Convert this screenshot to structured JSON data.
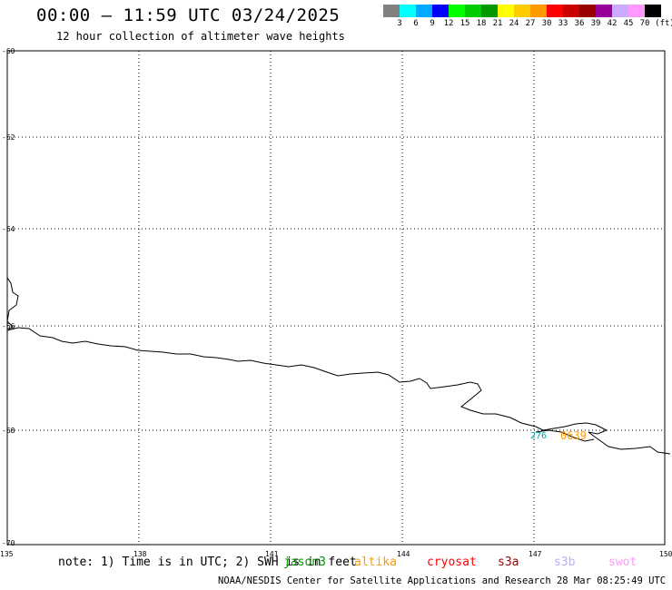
{
  "header": {
    "title": "00:00 – 11:59 UTC 03/24/2025",
    "subtitle": "12 hour collection of altimeter wave heights"
  },
  "color_scale": {
    "colors": [
      "#808080",
      "#00ffff",
      "#00aaff",
      "#0000ff",
      "#00ff00",
      "#00cc00",
      "#009900",
      "#ffff00",
      "#ffcc00",
      "#ff9900",
      "#ff0000",
      "#cc0000",
      "#990000",
      "#990099",
      "#ccaaff",
      "#ff99ff",
      "#000000"
    ],
    "labels": [
      "3",
      "6",
      "9",
      "12",
      "15",
      "18",
      "21",
      "24",
      "27",
      "30",
      "33",
      "36",
      "39",
      "42",
      "45",
      "70",
      "(ft)"
    ]
  },
  "map": {
    "lat_labels": [
      "-60",
      "-62",
      "-64",
      "-66",
      "-68",
      "-70"
    ],
    "lon_labels": [
      "135",
      "138",
      "141",
      "144",
      "147",
      "150"
    ]
  },
  "markers": [
    {
      "text": "276",
      "color": "#00aaaa"
    },
    {
      "text": "0639",
      "color": "#ff9900"
    }
  ],
  "footer": {
    "note": "note: 1) Time is in UTC; 2) SWH is in feet",
    "satellites": [
      {
        "name": "jason3",
        "color": "#009900"
      },
      {
        "name": "altika",
        "color": "#ff9900"
      },
      {
        "name": "cryosat",
        "color": "#ff0000"
      },
      {
        "name": "s3a",
        "color": "#aa0000"
      },
      {
        "name": "s3b",
        "color": "#bbaaff"
      },
      {
        "name": "swot",
        "color": "#ff99ff"
      }
    ],
    "credit": "NOAA/NESDIS Center for Satellite Applications and Research    28 Mar 08:25:49 UTC 2025"
  }
}
